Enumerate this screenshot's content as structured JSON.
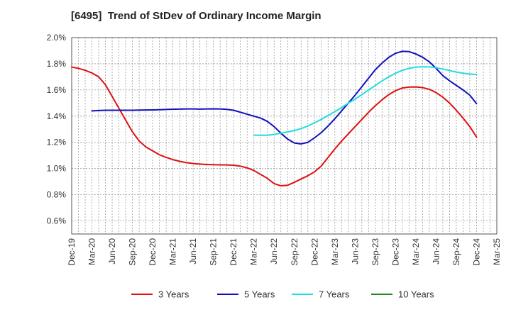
{
  "chart_data": {
    "type": "line",
    "title": "[6495]  Trend of StDev of Ordinary Income Margin",
    "xlabel": "",
    "ylabel": "",
    "ylim": [
      0.5,
      2.0
    ],
    "yticks": [
      "0.6%",
      "0.8%",
      "1.0%",
      "1.2%",
      "1.4%",
      "1.6%",
      "1.8%",
      "2.0%"
    ],
    "ytick_values": [
      0.6,
      0.8,
      1.0,
      1.2,
      1.4,
      1.6,
      1.8,
      2.0
    ],
    "xticks": [
      "Dec-19",
      "Mar-20",
      "Jun-20",
      "Sep-20",
      "Dec-20",
      "Mar-21",
      "Jun-21",
      "Sep-21",
      "Dec-21",
      "Mar-22",
      "Jun-22",
      "Sep-22",
      "Dec-22",
      "Mar-23",
      "Jun-23",
      "Sep-23",
      "Dec-23",
      "Mar-24",
      "Jun-24",
      "Sep-24",
      "Dec-24",
      "Mar-25"
    ],
    "grid": true,
    "legend_position": "bottom",
    "series": [
      {
        "name": "3 Years",
        "color": "#dd1111",
        "points": [
          [
            "Dec-19",
            1.775
          ],
          [
            "Jan-20",
            1.765
          ],
          [
            "Feb-20",
            1.75
          ],
          [
            "Mar-20",
            1.73
          ],
          [
            "Apr-20",
            1.7
          ],
          [
            "May-20",
            1.64
          ],
          [
            "Jun-20",
            1.55
          ],
          [
            "Jul-20",
            1.46
          ],
          [
            "Aug-20",
            1.37
          ],
          [
            "Sep-20",
            1.28
          ],
          [
            "Oct-20",
            1.21
          ],
          [
            "Nov-20",
            1.165
          ],
          [
            "Dec-20",
            1.135
          ],
          [
            "Jan-21",
            1.105
          ],
          [
            "Feb-21",
            1.085
          ],
          [
            "Mar-21",
            1.068
          ],
          [
            "Apr-21",
            1.055
          ],
          [
            "May-21",
            1.045
          ],
          [
            "Jun-21",
            1.038
          ],
          [
            "Jul-21",
            1.034
          ],
          [
            "Aug-21",
            1.031
          ],
          [
            "Sep-21",
            1.029
          ],
          [
            "Oct-21",
            1.028
          ],
          [
            "Nov-21",
            1.027
          ],
          [
            "Dec-21",
            1.025
          ],
          [
            "Jan-22",
            1.018
          ],
          [
            "Feb-22",
            1.005
          ],
          [
            "Mar-22",
            0.985
          ],
          [
            "Apr-22",
            0.955
          ],
          [
            "May-22",
            0.925
          ],
          [
            "Jun-22",
            0.885
          ],
          [
            "Jul-22",
            0.868
          ],
          [
            "Aug-22",
            0.872
          ],
          [
            "Sep-22",
            0.895
          ],
          [
            "Oct-22",
            0.92
          ],
          [
            "Nov-22",
            0.945
          ],
          [
            "Dec-22",
            0.975
          ],
          [
            "Jan-23",
            1.02
          ],
          [
            "Feb-23",
            1.085
          ],
          [
            "Mar-23",
            1.15
          ],
          [
            "Apr-23",
            1.21
          ],
          [
            "May-23",
            1.265
          ],
          [
            "Jun-23",
            1.32
          ],
          [
            "Jul-23",
            1.375
          ],
          [
            "Aug-23",
            1.43
          ],
          [
            "Sep-23",
            1.48
          ],
          [
            "Oct-23",
            1.525
          ],
          [
            "Nov-23",
            1.565
          ],
          [
            "Dec-23",
            1.595
          ],
          [
            "Jan-24",
            1.615
          ],
          [
            "Feb-24",
            1.622
          ],
          [
            "Mar-24",
            1.623
          ],
          [
            "Apr-24",
            1.618
          ],
          [
            "May-24",
            1.605
          ],
          [
            "Jun-24",
            1.58
          ],
          [
            "Jul-24",
            1.545
          ],
          [
            "Aug-24",
            1.5
          ],
          [
            "Sep-24",
            1.445
          ],
          [
            "Oct-24",
            1.385
          ],
          [
            "Nov-24",
            1.32
          ],
          [
            "Dec-24",
            1.24
          ]
        ]
      },
      {
        "name": "5 Years",
        "color": "#1111bb",
        "points": [
          [
            "Mar-20",
            1.44
          ],
          [
            "Apr-20",
            1.443
          ],
          [
            "May-20",
            1.445
          ],
          [
            "Jun-20",
            1.445
          ],
          [
            "Jul-20",
            1.445
          ],
          [
            "Aug-20",
            1.445
          ],
          [
            "Sep-20",
            1.445
          ],
          [
            "Oct-20",
            1.446
          ],
          [
            "Nov-20",
            1.447
          ],
          [
            "Dec-20",
            1.448
          ],
          [
            "Jan-21",
            1.449
          ],
          [
            "Feb-21",
            1.451
          ],
          [
            "Mar-21",
            1.453
          ],
          [
            "Apr-21",
            1.454
          ],
          [
            "May-21",
            1.455
          ],
          [
            "Jun-21",
            1.455
          ],
          [
            "Jul-21",
            1.454
          ],
          [
            "Aug-21",
            1.455
          ],
          [
            "Sep-21",
            1.456
          ],
          [
            "Oct-21",
            1.455
          ],
          [
            "Nov-21",
            1.452
          ],
          [
            "Dec-21",
            1.445
          ],
          [
            "Jan-22",
            1.43
          ],
          [
            "Feb-22",
            1.415
          ],
          [
            "Mar-22",
            1.4
          ],
          [
            "Apr-22",
            1.385
          ],
          [
            "May-22",
            1.36
          ],
          [
            "Jun-22",
            1.32
          ],
          [
            "Jul-22",
            1.27
          ],
          [
            "Aug-22",
            1.225
          ],
          [
            "Sep-22",
            1.195
          ],
          [
            "Oct-22",
            1.188
          ],
          [
            "Nov-22",
            1.2
          ],
          [
            "Dec-22",
            1.235
          ],
          [
            "Jan-23",
            1.275
          ],
          [
            "Feb-23",
            1.325
          ],
          [
            "Mar-23",
            1.38
          ],
          [
            "Apr-23",
            1.44
          ],
          [
            "May-23",
            1.5
          ],
          [
            "Jun-23",
            1.56
          ],
          [
            "Jul-23",
            1.625
          ],
          [
            "Aug-23",
            1.69
          ],
          [
            "Sep-23",
            1.755
          ],
          [
            "Oct-23",
            1.805
          ],
          [
            "Nov-23",
            1.85
          ],
          [
            "Dec-23",
            1.88
          ],
          [
            "Jan-24",
            1.895
          ],
          [
            "Feb-24",
            1.893
          ],
          [
            "Mar-24",
            1.875
          ],
          [
            "Apr-24",
            1.85
          ],
          [
            "May-24",
            1.815
          ],
          [
            "Jun-24",
            1.765
          ],
          [
            "Jul-24",
            1.71
          ],
          [
            "Aug-24",
            1.67
          ],
          [
            "Sep-24",
            1.635
          ],
          [
            "Oct-24",
            1.6
          ],
          [
            "Nov-24",
            1.56
          ],
          [
            "Dec-24",
            1.495
          ]
        ]
      },
      {
        "name": "7 Years",
        "color": "#22dddd",
        "points": [
          [
            "Mar-22",
            1.255
          ],
          [
            "Apr-22",
            1.254
          ],
          [
            "May-22",
            1.254
          ],
          [
            "Jun-22",
            1.26
          ],
          [
            "Jul-22",
            1.27
          ],
          [
            "Aug-22",
            1.28
          ],
          [
            "Sep-22",
            1.29
          ],
          [
            "Oct-22",
            1.305
          ],
          [
            "Nov-22",
            1.325
          ],
          [
            "Dec-22",
            1.35
          ],
          [
            "Jan-23",
            1.375
          ],
          [
            "Feb-23",
            1.405
          ],
          [
            "Mar-23",
            1.435
          ],
          [
            "Apr-23",
            1.465
          ],
          [
            "May-23",
            1.5
          ],
          [
            "Jun-23",
            1.53
          ],
          [
            "Jul-23",
            1.565
          ],
          [
            "Aug-23",
            1.6
          ],
          [
            "Sep-23",
            1.635
          ],
          [
            "Oct-23",
            1.67
          ],
          [
            "Nov-23",
            1.7
          ],
          [
            "Dec-23",
            1.728
          ],
          [
            "Jan-24",
            1.75
          ],
          [
            "Feb-24",
            1.765
          ],
          [
            "Mar-24",
            1.774
          ],
          [
            "Apr-24",
            1.777
          ],
          [
            "May-24",
            1.776
          ],
          [
            "Jun-24",
            1.77
          ],
          [
            "Jul-24",
            1.76
          ],
          [
            "Aug-24",
            1.748
          ],
          [
            "Sep-24",
            1.737
          ],
          [
            "Oct-24",
            1.728
          ],
          [
            "Nov-24",
            1.722
          ],
          [
            "Dec-24",
            1.718
          ]
        ]
      },
      {
        "name": "10 Years",
        "color": "#228822",
        "points": []
      }
    ]
  }
}
